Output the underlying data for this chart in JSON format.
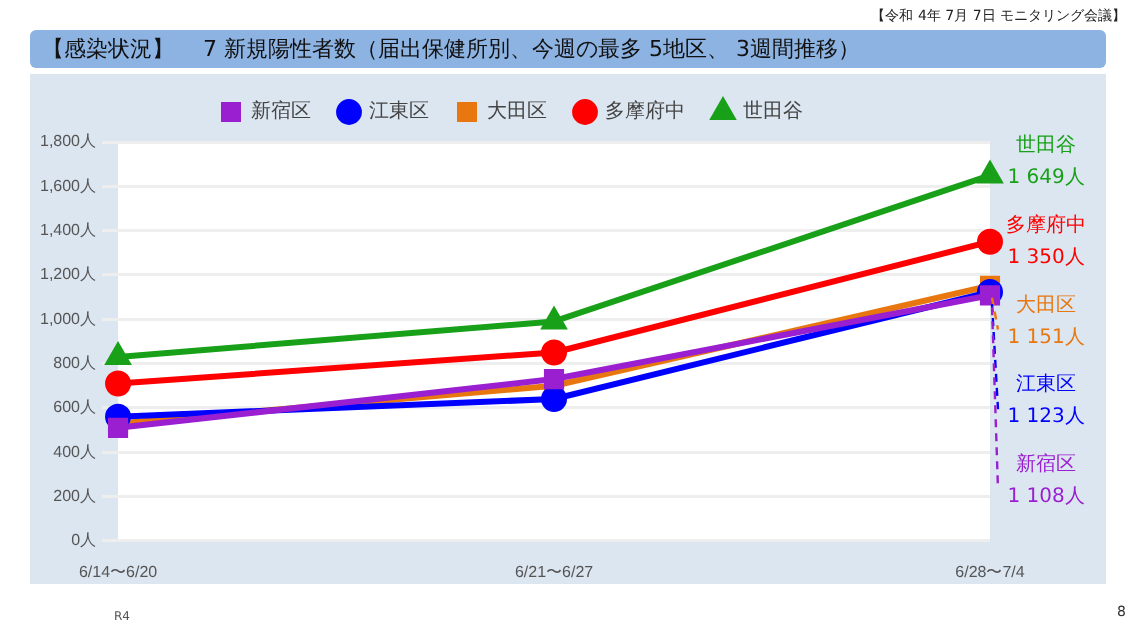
{
  "chart_data": {
    "type": "line",
    "title": "【感染状況】　 7 新規陽性者数（届出保健所別、今週の最多 5地区、 3週間推移）",
    "annotations": [
      "【令和 4年 7月 7日 モニタリング会議】",
      "R4",
      "8"
    ],
    "categories": [
      "6/14〜6/20",
      "6/21〜6/27",
      "6/28〜7/4"
    ],
    "series": [
      {
        "name": "世田谷",
        "color": "#19a019",
        "marker": "triangle",
        "values": [
          830,
          990,
          1649
        ],
        "value_labels": [
          null,
          null,
          "1 649人"
        ]
      },
      {
        "name": "多摩府中",
        "color": "#ff0000",
        "marker": "circle",
        "values": [
          710,
          850,
          1350
        ],
        "value_labels": [
          null,
          null,
          "1 350人"
        ]
      },
      {
        "name": "大田区",
        "color": "#e8770f",
        "marker": "square",
        "values": [
          530,
          700,
          1151
        ],
        "value_labels": [
          null,
          null,
          "1 151人"
        ]
      },
      {
        "name": "江東区",
        "color": "#0000ff",
        "marker": "circle",
        "values": [
          560,
          640,
          1123
        ],
        "value_labels": [
          null,
          null,
          "1 123人"
        ]
      },
      {
        "name": "新宿区",
        "color": "#9a1fd0",
        "marker": "square",
        "values": [
          510,
          730,
          1108
        ],
        "value_labels": [
          null,
          null,
          "1 108人"
        ]
      }
    ],
    "ylim": [
      0,
      1800
    ],
    "yticks": [
      {
        "value": 0,
        "label": "0人"
      },
      {
        "value": 200,
        "label": "200人"
      },
      {
        "value": 400,
        "label": "400人"
      },
      {
        "value": 600,
        "label": "600人"
      },
      {
        "value": 800,
        "label": "800人"
      },
      {
        "value": 1000,
        "label": "1,000人"
      },
      {
        "value": 1200,
        "label": "1,200人"
      },
      {
        "value": 1400,
        "label": "1,400人"
      },
      {
        "value": 1600,
        "label": "1,600人"
      },
      {
        "value": 1800,
        "label": "1,800人"
      }
    ],
    "grid": "y",
    "legend": "top",
    "line_style": "solid"
  }
}
